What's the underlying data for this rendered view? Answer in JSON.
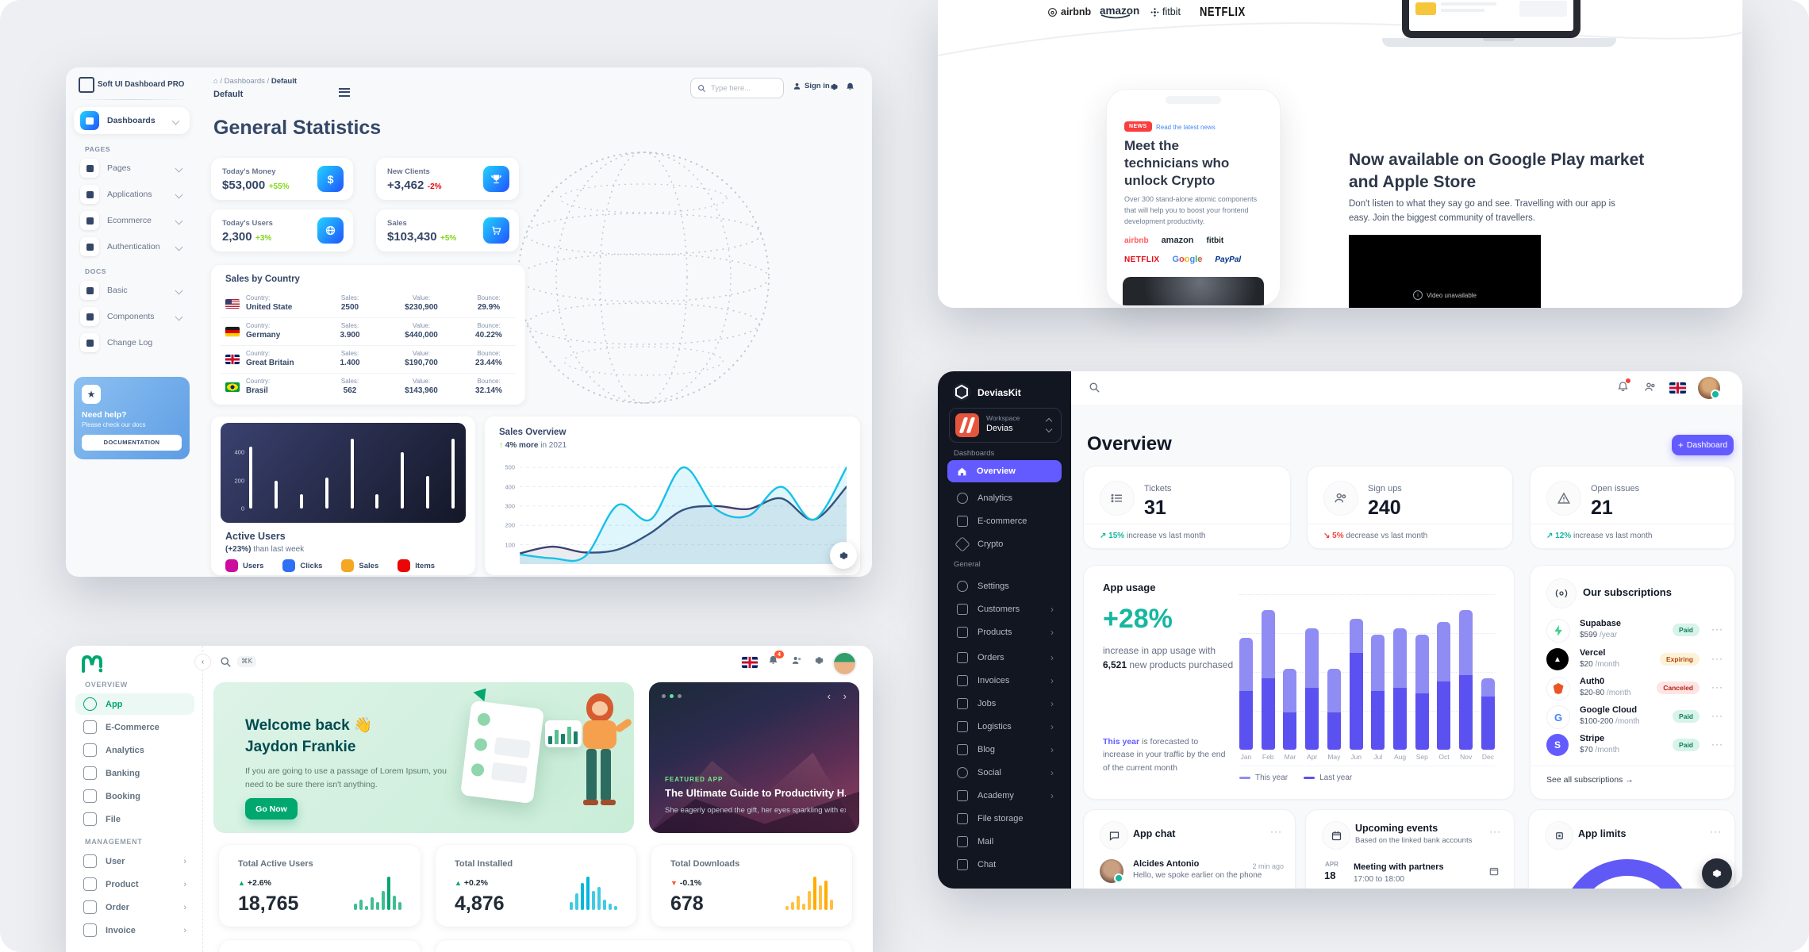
{
  "softui": {
    "brand": "Soft UI Dashboard PRO",
    "topbar": {
      "breadcrumb_root": "Dashboards",
      "breadcrumb_current": "Default",
      "page_title": "Default",
      "search_placeholder": "Type here...",
      "signin": "Sign in"
    },
    "sidebar": {
      "active_label": "Dashboards",
      "pages_label": "PAGES",
      "items": [
        {
          "label": "Pages"
        },
        {
          "label": "Applications"
        },
        {
          "label": "Ecommerce"
        },
        {
          "label": "Authentication"
        }
      ],
      "docs_label": "DOCS",
      "docs": [
        {
          "label": "Basic"
        },
        {
          "label": "Components"
        },
        {
          "label": "Change Log"
        }
      ],
      "help": {
        "title": "Need help?",
        "subtitle": "Please check our docs",
        "button": "DOCUMENTATION"
      }
    },
    "title": "General Statistics",
    "stats": [
      {
        "label": "Today's Money",
        "value": "$53,000",
        "delta": "+55%"
      },
      {
        "label": "New Clients",
        "value": "+3,462",
        "delta": "-2%"
      },
      {
        "label": "Today's Users",
        "value": "2,300",
        "delta": "+3%"
      },
      {
        "label": "Sales",
        "value": "$103,430",
        "delta": "+5%"
      }
    ],
    "sales_by_country": {
      "title": "Sales by Country",
      "col_labels": {
        "country": "Country:",
        "sales": "Sales:",
        "value": "Value:",
        "bounce": "Bounce:"
      },
      "rows": [
        {
          "country": "United State",
          "sales": "2500",
          "value": "$230,900",
          "bounce": "29.9%"
        },
        {
          "country": "Germany",
          "sales": "3.900",
          "value": "$440,000",
          "bounce": "40.22%"
        },
        {
          "country": "Great Britain",
          "sales": "1.400",
          "value": "$190,700",
          "bounce": "23.44%"
        },
        {
          "country": "Brasil",
          "sales": "562",
          "value": "$143,960",
          "bounce": "32.14%"
        }
      ]
    },
    "active_users": {
      "title": "Active Users",
      "delta_bold": "(+23%)",
      "delta_rest": " than last week",
      "ylabels": [
        400,
        200,
        0
      ],
      "ymax": 520,
      "bars": [
        440,
        200,
        100,
        220,
        500,
        100,
        400,
        230,
        500
      ],
      "legend": [
        {
          "label": "Users",
          "color": "#cb0c9f"
        },
        {
          "label": "Clicks",
          "color": "#2d6ff5"
        },
        {
          "label": "Sales",
          "color": "#f5a623"
        },
        {
          "label": "Items",
          "color": "#ea0606"
        }
      ]
    },
    "sales_overview": {
      "title": "Sales Overview",
      "arrow": "↑",
      "delta_bold": "4% more",
      "delta_rest": " in 2021",
      "ylabels": [
        500,
        400,
        300,
        200,
        100
      ],
      "ymax": 550,
      "series": [
        {
          "name": "this-year",
          "color": "#17c1e8",
          "fill": "rgba(23,193,232,0.14)",
          "values": [
            50,
            30,
            40,
            305,
            230,
            500,
            285,
            250,
            400,
            230,
            500
          ]
        },
        {
          "name": "last-year",
          "color": "#3a416f",
          "fill": "rgba(58,65,111,0.10)",
          "values": [
            55,
            90,
            60,
            75,
            160,
            280,
            300,
            285,
            340,
            230,
            400
          ]
        }
      ]
    }
  },
  "landing": {
    "logos": [
      "airbnb",
      "amazon",
      "fitbit",
      "NETFLIX"
    ],
    "news_badge": "NEWS",
    "news_link": "Read the latest news",
    "hero_title": "Meet the technicians who unlock Crypto",
    "hero_text": "Over 300 stand-alone atomic components that will help you to boost your frontend development productivity.",
    "phone_logos": [
      "airbnb",
      "amazon",
      "fitbit",
      "NETFLIX",
      "Google",
      "PayPal"
    ],
    "promo_title_1": "Now available on Google Play market",
    "promo_title_2": "and Apple Store",
    "promo_text": "Don't listen to what they say go and see. Travelling with our app is easy. Join the biggest community of travellers.",
    "video_label": "Video unavailable"
  },
  "minimal": {
    "sidebar": {
      "overview_label": "OVERVIEW",
      "management_label": "MANAGEMENT",
      "overview": [
        {
          "label": "App"
        },
        {
          "label": "E-Commerce"
        },
        {
          "label": "Analytics"
        },
        {
          "label": "Banking"
        },
        {
          "label": "Booking"
        },
        {
          "label": "File"
        }
      ],
      "management": [
        {
          "label": "User"
        },
        {
          "label": "Product"
        },
        {
          "label": "Order"
        },
        {
          "label": "Invoice"
        }
      ]
    },
    "topbar": {
      "shortcut": "⌘K",
      "badge": "4"
    },
    "welcome": {
      "title1": "Welcome back 👋",
      "title2": "Jaydon Frankie",
      "text": "If you are going to use a passage of Lorem Ipsum, you need to be sure there isn't anything.",
      "button": "Go Now"
    },
    "featured": {
      "tag": "FEATURED APP",
      "title": "The Ultimate Guide to Productivity H...",
      "subtitle": "She eagerly opened the gift, her eyes sparkling with exc..."
    },
    "stats": [
      {
        "label": "Total Active Users",
        "arrow": "▲",
        "delta": "+2.6%",
        "value": "18,765",
        "color": "#00a76f",
        "spark": [
          3,
          5,
          2,
          6,
          4,
          9,
          16,
          7,
          4
        ]
      },
      {
        "label": "Total Installed",
        "arrow": "▲",
        "delta": "+0.2%",
        "value": "4,876",
        "color": "#00b8d9",
        "spark": [
          4,
          8,
          13,
          16,
          9,
          11,
          5,
          3,
          2
        ]
      },
      {
        "label": "Total Downloads",
        "arrow": "▼",
        "delta": "-0.1%",
        "value": "678",
        "color": "#ffab00",
        "spark": [
          2,
          4,
          7,
          3,
          9,
          16,
          12,
          14,
          5
        ]
      }
    ]
  },
  "devias": {
    "brand": "DeviasKit",
    "workspace_label": "Workspace",
    "workspace": "Devias",
    "dash_label": "Dashboards",
    "general_label": "General",
    "nav_dash": [
      {
        "label": "Overview"
      },
      {
        "label": "Analytics"
      },
      {
        "label": "E-commerce"
      },
      {
        "label": "Crypto"
      }
    ],
    "nav_general": [
      {
        "label": "Settings",
        "chev": ""
      },
      {
        "label": "Customers",
        "chev": "›"
      },
      {
        "label": "Products",
        "chev": "›"
      },
      {
        "label": "Orders",
        "chev": "›"
      },
      {
        "label": "Invoices",
        "chev": "›"
      },
      {
        "label": "Jobs",
        "chev": "›"
      },
      {
        "label": "Logistics",
        "chev": "›"
      },
      {
        "label": "Blog",
        "chev": "›"
      },
      {
        "label": "Social",
        "chev": "›"
      },
      {
        "label": "Academy",
        "chev": "›"
      },
      {
        "label": "File storage",
        "chev": ""
      },
      {
        "label": "Mail",
        "chev": ""
      },
      {
        "label": "Chat",
        "chev": ""
      }
    ],
    "page_title": "Overview",
    "add_button": "Dashboard",
    "stats": [
      {
        "label": "Tickets",
        "value": "31",
        "arrow": "↗",
        "pct": "15%",
        "rest": " increase vs last month",
        "color": "#15b79f"
      },
      {
        "label": "Sign ups",
        "value": "240",
        "arrow": "↘",
        "pct": "5%",
        "rest": " decrease vs last month",
        "color": "#f04438"
      },
      {
        "label": "Open issues",
        "value": "21",
        "arrow": "↗",
        "pct": "12%",
        "rest": " increase vs last month",
        "color": "#15b79f"
      }
    ],
    "app_usage": {
      "title": "App usage",
      "big": "+28%",
      "line1": "increase in app usage with",
      "line2_bold": "6,521",
      "line2_rest": " new products purchased",
      "foot_bold": "This year",
      "foot_rest": " is forecasted to increase in your traffic by the end of the current month",
      "legend": [
        {
          "label": "This year",
          "color": "#8f8cf4"
        },
        {
          "label": "Last year",
          "color": "#5b51f0"
        }
      ],
      "months": [
        "Jan",
        "Feb",
        "Mar",
        "Apr",
        "May",
        "Jun",
        "Jul",
        "Aug",
        "Sep",
        "Oct",
        "Nov",
        "Dec"
      ],
      "this_year": [
        17,
        22,
        14,
        19,
        14,
        11,
        18,
        19,
        19,
        19,
        21,
        6
      ],
      "last_year": [
        19,
        23,
        12,
        20,
        12,
        31,
        19,
        20,
        18,
        22,
        24,
        17
      ],
      "ymax": 50
    },
    "subscriptions": {
      "title": "Our subscriptions",
      "rows": [
        {
          "name": "Supabase",
          "price": "$599",
          "period": "/year",
          "status": "Paid"
        },
        {
          "name": "Vercel",
          "price": "$20",
          "period": "/month",
          "status": "Expiring"
        },
        {
          "name": "Auth0",
          "price": "$20-80",
          "period": "/month",
          "status": "Canceled"
        },
        {
          "name": "Google Cloud",
          "price": "$100-200",
          "period": "/month",
          "status": "Paid"
        },
        {
          "name": "Stripe",
          "price": "$70",
          "period": "/month",
          "status": "Paid"
        }
      ],
      "footer": "See all subscriptions"
    },
    "chat": {
      "title": "App chat",
      "name": "Alcides Antonio",
      "message": "Hello, we spoke earlier on the phone",
      "time": "2 min ago"
    },
    "events": {
      "title": "Upcoming events",
      "subtitle": "Based on the linked bank accounts",
      "month": "APR",
      "day": "18",
      "event": "Meeting with partners",
      "time": "17:00 to 18:00"
    },
    "limits": {
      "title": "App limits"
    }
  }
}
